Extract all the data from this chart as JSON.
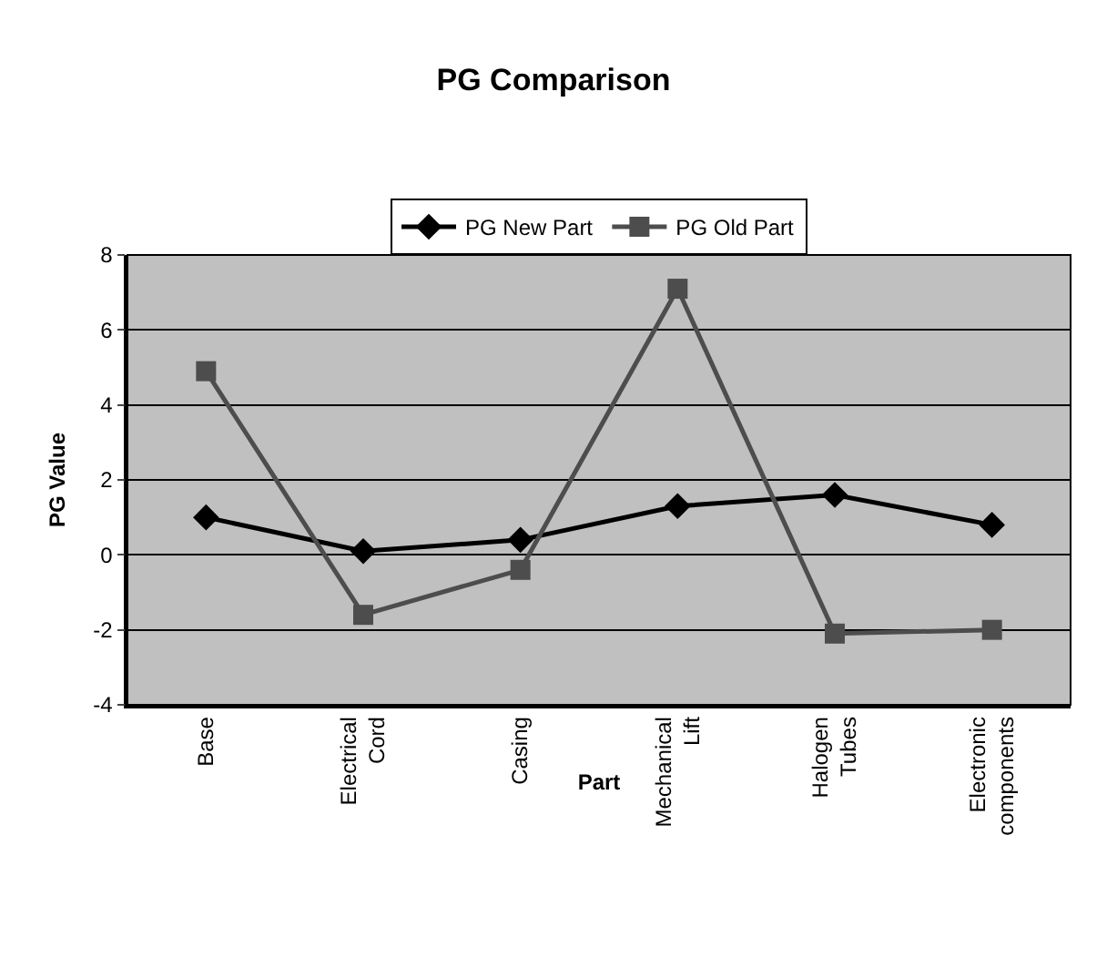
{
  "chart_data": {
    "type": "line",
    "title": "PG Comparison",
    "xlabel": "Part",
    "ylabel": "PG Value",
    "categories": [
      "Base",
      "Electrical Cord",
      "Casing",
      "Mechanical Lift",
      "Halogen Tubes",
      "Electronic components"
    ],
    "series": [
      {
        "name": "PG New Part",
        "color": "#000000",
        "marker": "diamond",
        "values": [
          1.0,
          0.1,
          0.4,
          1.3,
          1.6,
          0.8
        ]
      },
      {
        "name": "PG Old Part",
        "color": "#4d4d4d",
        "marker": "square",
        "values": [
          4.9,
          -1.6,
          -0.4,
          7.1,
          -2.1,
          -2.0
        ]
      }
    ],
    "ylim": [
      -4,
      8
    ],
    "yticks": [
      -4,
      -2,
      0,
      2,
      4,
      6,
      8
    ],
    "grid": "y",
    "legend": "top",
    "line_style": "solid"
  }
}
